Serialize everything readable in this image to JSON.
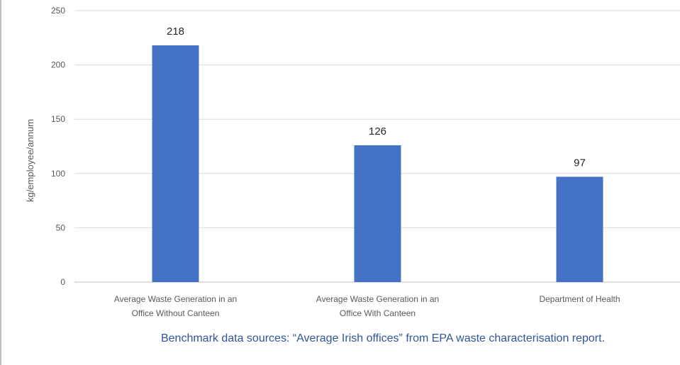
{
  "chart_data": {
    "type": "bar",
    "categories": [
      [
        "Average Waste Generation in an",
        "Office Without Canteen"
      ],
      [
        "Average Waste Generation in an",
        "Office With Canteen"
      ],
      [
        "Department of Health"
      ]
    ],
    "values": [
      218,
      126,
      97
    ],
    "data_labels": [
      "218",
      "126",
      "97"
    ],
    "ylabel": "kg/employee/annum",
    "ylim": [
      0,
      250
    ],
    "yticks": [
      "0",
      "50",
      "100",
      "150",
      "200",
      "250"
    ],
    "grid": true,
    "bar_color": "#4472c4",
    "legend": "none"
  },
  "caption": "Benchmark data sources: “Average Irish offices” from EPA waste characterisation report."
}
